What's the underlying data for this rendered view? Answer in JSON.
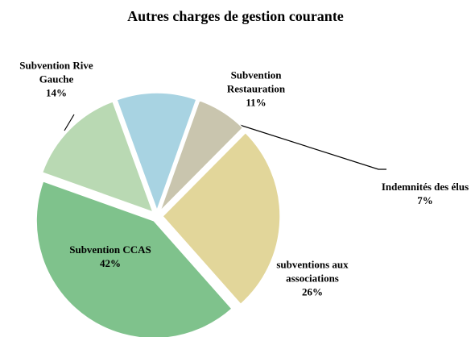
{
  "chart_data": {
    "type": "pie",
    "title": "Autres charges de gestion courante",
    "categories": [
      "Subvention Restauration",
      "Indemnités des élus",
      "subventions aux associations",
      "Subvention CCAS",
      "Subvention Rive Gauche"
    ],
    "values": [
      11,
      7,
      26,
      42,
      14
    ],
    "value_labels": [
      "11%",
      "7%",
      "26%",
      "42%",
      "14%"
    ],
    "colors": [
      "#a8d3e2",
      "#c9c5ae",
      "#e2d69a",
      "#7fc28c",
      "#b9d9b3"
    ]
  }
}
